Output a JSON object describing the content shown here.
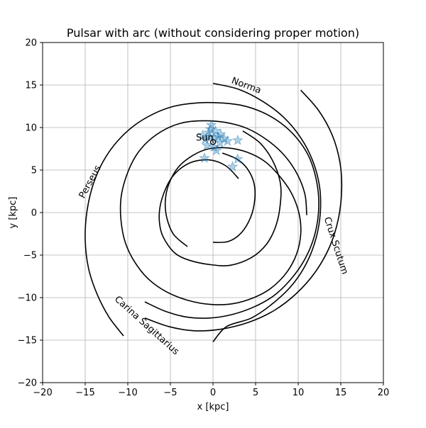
{
  "chart_data": {
    "type": "scatter",
    "title": "Pulsar with arc (without considering proper motion)",
    "xlabel": "x [kpc]",
    "ylabel": "y [kpc]",
    "xlim": [
      -20,
      20
    ],
    "ylim": [
      -20,
      20
    ],
    "xticks": [
      -20,
      -15,
      -10,
      -5,
      0,
      5,
      10,
      15,
      20
    ],
    "yticks": [
      -20,
      -15,
      -10,
      -5,
      0,
      5,
      10,
      15,
      20
    ],
    "grid": true,
    "sun": {
      "label": "Sun",
      "x": 0,
      "y": 8.3
    },
    "arms": [
      {
        "name": "Norma",
        "points": [
          [
            0,
            -3.5
          ],
          [
            1.8,
            -3.4
          ],
          [
            3.3,
            -2.4
          ],
          [
            4.4,
            -0.6
          ],
          [
            4.9,
            1.5
          ],
          [
            4.8,
            3.5
          ],
          [
            4.0,
            5.2
          ],
          [
            2.8,
            6.3
          ],
          [
            1.1,
            7.0
          ]
        ]
      },
      {
        "name": "Carina Sagittarius",
        "points": [
          [
            3,
            4
          ],
          [
            1.5,
            5.5
          ],
          [
            -0.5,
            6.2
          ],
          [
            -2.8,
            5.8
          ],
          [
            -4.7,
            4.3
          ],
          [
            -5.8,
            2.2
          ],
          [
            -6.3,
            0
          ],
          [
            -6.1,
            -2.2
          ],
          [
            -5.3,
            -3.8
          ],
          [
            -4.3,
            -4.9
          ],
          [
            -2.8,
            -5.6
          ],
          [
            -0.5,
            -6.1
          ],
          [
            2,
            -6.2
          ],
          [
            4.5,
            -5.3
          ],
          [
            6.3,
            -3.7
          ],
          [
            7.4,
            -1.5
          ],
          [
            7.9,
            1.0
          ],
          [
            7.9,
            3.5
          ],
          [
            7.0,
            6.1
          ],
          [
            5.5,
            8.2
          ],
          [
            3.5,
            9.6
          ]
        ]
      },
      {
        "name": "Crux Scutum",
        "points": [
          [
            -3,
            -4
          ],
          [
            -4.6,
            -2.6
          ],
          [
            -5.4,
            -0.7
          ],
          [
            -5.6,
            1.3
          ],
          [
            -5.2,
            3.3
          ],
          [
            -4.1,
            5.3
          ],
          [
            -2.4,
            6.7
          ],
          [
            -0.5,
            7.5
          ],
          [
            1.8,
            7.6
          ],
          [
            4.0,
            7.1
          ],
          [
            6.1,
            6.0
          ],
          [
            7.8,
            4.3
          ],
          [
            9.2,
            2.3
          ],
          [
            10.1,
            -0.1
          ],
          [
            10.3,
            -2.5
          ],
          [
            9.8,
            -4.9
          ],
          [
            8.6,
            -7.1
          ],
          [
            6.8,
            -8.9
          ],
          [
            4.8,
            -10.0
          ],
          [
            2.4,
            -10.7
          ],
          [
            -0.3,
            -10.8
          ],
          [
            -3.0,
            -10.3
          ],
          [
            -5.5,
            -9.3
          ],
          [
            -7.6,
            -7.8
          ],
          [
            -9.2,
            -5.8
          ],
          [
            -10.3,
            -3.5
          ],
          [
            -10.8,
            -0.9
          ],
          [
            -10.8,
            1.7
          ],
          [
            -10.2,
            4.2
          ],
          [
            -9.1,
            6.6
          ],
          [
            -7.6,
            8.4
          ],
          [
            -5.6,
            9.8
          ],
          [
            -3.4,
            10.6
          ],
          [
            -1.0,
            10.8
          ],
          [
            1.5,
            10.6
          ],
          [
            4.0,
            9.9
          ],
          [
            6.4,
            8.5
          ],
          [
            8.4,
            6.7
          ],
          [
            9.9,
            4.5
          ],
          [
            10.8,
            2.1
          ],
          [
            11.0,
            -0.3
          ]
        ]
      },
      {
        "name": "Perseus",
        "points": [
          [
            -10.5,
            -14.5
          ],
          [
            -12.2,
            -12.3
          ],
          [
            -13.6,
            -9.6
          ],
          [
            -14.6,
            -6.6
          ],
          [
            -15.0,
            -3.2
          ],
          [
            -14.8,
            0.1
          ],
          [
            -14.1,
            3.2
          ],
          [
            -12.9,
            6.0
          ],
          [
            -11.3,
            8.3
          ],
          [
            -9.3,
            10.2
          ],
          [
            -7.0,
            11.6
          ],
          [
            -4.6,
            12.5
          ],
          [
            -1.8,
            12.9
          ],
          [
            0.8,
            12.9
          ],
          [
            3.4,
            12.6
          ],
          [
            5.8,
            11.8
          ],
          [
            8.0,
            10.5
          ],
          [
            9.8,
            8.8
          ],
          [
            11.2,
            6.7
          ],
          [
            12.0,
            4.4
          ],
          [
            12.4,
            1.8
          ],
          [
            12.3,
            -0.8
          ],
          [
            11.7,
            -3.4
          ],
          [
            10.6,
            -5.8
          ],
          [
            9.0,
            -8.0
          ],
          [
            7.1,
            -9.8
          ],
          [
            4.8,
            -11.1
          ],
          [
            2.2,
            -12.0
          ],
          [
            -0.4,
            -12.4
          ],
          [
            -3.0,
            -12.3
          ],
          [
            -5.6,
            -11.6
          ],
          [
            -8.0,
            -10.5
          ]
        ]
      },
      {
        "name": "arm-5",
        "points": [
          [
            0,
            15.2
          ],
          [
            3.0,
            14.5
          ],
          [
            5.8,
            13.1
          ],
          [
            8.3,
            11.2
          ],
          [
            10.3,
            8.8
          ],
          [
            11.7,
            6.1
          ],
          [
            12.5,
            3.1
          ],
          [
            12.6,
            0.0
          ],
          [
            12.1,
            -3.0
          ],
          [
            11.0,
            -5.9
          ],
          [
            9.3,
            -8.5
          ],
          [
            7.0,
            -10.7
          ],
          [
            4.5,
            -12.4
          ],
          [
            1.6,
            -13.4
          ],
          [
            0,
            -15.2
          ]
        ]
      },
      {
        "name": "arm-6",
        "points": [
          [
            10.3,
            14.4
          ],
          [
            12.4,
            12.0
          ],
          [
            14.0,
            9.1
          ],
          [
            14.9,
            5.9
          ],
          [
            15.1,
            2.6
          ],
          [
            14.7,
            -0.8
          ],
          [
            13.7,
            -4.0
          ],
          [
            12.0,
            -7.0
          ],
          [
            9.8,
            -9.5
          ],
          [
            7.2,
            -11.5
          ],
          [
            4.2,
            -12.9
          ],
          [
            1.0,
            -13.7
          ],
          [
            -2.2,
            -13.9
          ],
          [
            -5.2,
            -13.4
          ],
          [
            -8.0,
            -12.4
          ]
        ]
      }
    ],
    "arm_labels": [
      {
        "text": "Norma",
        "x": 3.9,
        "y": 14.9,
        "rotation": 20
      },
      {
        "text": "Perseus",
        "x": -14.4,
        "y": 3.6,
        "rotation": -62
      },
      {
        "text": "Crux Scutum",
        "x": 14.4,
        "y": -3.9,
        "rotation": 72
      },
      {
        "text": "Carina Sagittarius",
        "x": -7.8,
        "y": -13.3,
        "rotation": 42
      }
    ],
    "pulsars": [
      [
        -0.2,
        10.3
      ],
      [
        0.3,
        9.6
      ],
      [
        -1.2,
        9.1
      ],
      [
        -0.5,
        9.4
      ],
      [
        0.9,
        9.2
      ],
      [
        0.6,
        8.9
      ],
      [
        1.3,
        8.7
      ],
      [
        -0.9,
        8.6
      ],
      [
        0.2,
        8.8
      ],
      [
        -0.4,
        8.9
      ],
      [
        1.7,
        8.4
      ],
      [
        2.9,
        8.5
      ],
      [
        0.8,
        8.2
      ],
      [
        0.1,
        7.7
      ],
      [
        -0.7,
        7.9
      ],
      [
        0.4,
        7.3
      ],
      [
        -1.0,
        6.4
      ],
      [
        2.9,
        6.3
      ],
      [
        2.3,
        5.4
      ],
      [
        -0.3,
        9.8
      ]
    ]
  }
}
